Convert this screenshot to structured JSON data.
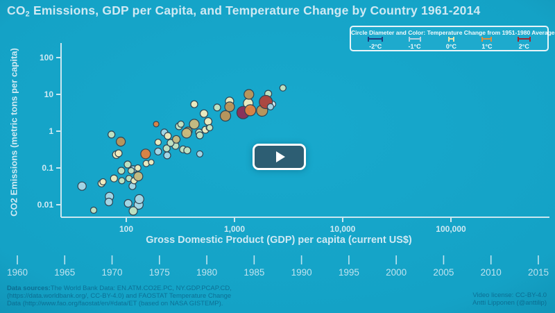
{
  "title": {
    "prefix": "CO",
    "sub": "2",
    "rest": " Emissions, GDP per Capita, and Temperature Change by Country 1961-2014"
  },
  "legend": {
    "title": "Circle Diameter and Color: Temperature Change from 1951-1980 Average",
    "items": [
      {
        "label": "-2°C",
        "color": "#203c7e",
        "width": 22
      },
      {
        "label": "-1°C",
        "color": "#b7d2e4",
        "width": 18
      },
      {
        "label": "0°C",
        "color": "#ece5a9",
        "width": 9
      },
      {
        "label": "1°C",
        "color": "#dd8f3f",
        "width": 15
      },
      {
        "label": "2°C",
        "color": "#9e2430",
        "width": 19
      }
    ]
  },
  "chart_data": {
    "type": "scatter",
    "title": "CO2 Emissions, GDP per Capita, and Temperature Change by Country 1961-2014",
    "xlabel": "Gross Domestic Product (GDP) per capita (current US$)",
    "ylabel": "CO2 Emissions (metric tons per capita)",
    "x_scale": "log",
    "y_scale": "log",
    "xlim": [
      25,
      81000
    ],
    "ylim": [
      0.0046,
      176
    ],
    "x_ticks": [
      100,
      1000,
      10000,
      100000
    ],
    "x_tick_labels": [
      "100",
      "1,000",
      "10,000",
      "100,000"
    ],
    "y_ticks": [
      100,
      10,
      1,
      0.1,
      0.01
    ],
    "y_tick_labels": [
      "100",
      "10",
      "1",
      "0.1",
      "0.01"
    ],
    "grid": false,
    "legend_position": "top-right",
    "point_note": "each point = one country; x=GDP per capita US$, y=CO2 tons per capita, r=pixel radius, k=temperature-color class",
    "palette": {
      "lightblue": "#a9d7e6",
      "iceblue": "#d9edf2",
      "palegreen": "#c4e3c1",
      "cream": "#f2ecbe",
      "khaki": "#cbbb7d",
      "olive": "#b2a75e",
      "tan": "#bf9456",
      "orange": "#e0813f",
      "red": "#b2423a",
      "maroon": "#8e2c55",
      "stroke": "#2f4453"
    },
    "points": [
      {
        "gdp": 39,
        "co2": 0.032,
        "r": 6,
        "k": "lightblue"
      },
      {
        "gdp": 59,
        "co2": 0.038,
        "r": 5,
        "k": "cream"
      },
      {
        "gdp": 61,
        "co2": 0.042,
        "r": 4.5,
        "k": "cream"
      },
      {
        "gdp": 70,
        "co2": 0.0168,
        "r": 6,
        "k": "lightblue"
      },
      {
        "gdp": 69,
        "co2": 0.0119,
        "r": 5.5,
        "k": "lightblue"
      },
      {
        "gdp": 104,
        "co2": 0.0109,
        "r": 5.5,
        "k": "lightblue"
      },
      {
        "gdp": 130,
        "co2": 0.01,
        "r": 6.5,
        "k": "lightblue"
      },
      {
        "gdp": 132,
        "co2": 0.0142,
        "r": 6.5,
        "k": "lightblue"
      },
      {
        "gdp": 116,
        "co2": 0.0068,
        "r": 6,
        "k": "palegreen"
      },
      {
        "gdp": 50,
        "co2": 0.0071,
        "r": 4.5,
        "k": "palegreen"
      },
      {
        "gdp": 77,
        "co2": 0.052,
        "r": 5,
        "k": "cream"
      },
      {
        "gdp": 90,
        "co2": 0.084,
        "r": 5,
        "k": "palegreen"
      },
      {
        "gdp": 91,
        "co2": 0.045,
        "r": 4.5,
        "k": "palegreen"
      },
      {
        "gdp": 106,
        "co2": 0.052,
        "r": 4.5,
        "k": "palegreen"
      },
      {
        "gdp": 114,
        "co2": 0.032,
        "r": 5,
        "k": "lightblue"
      },
      {
        "gdp": 116,
        "co2": 0.092,
        "r": 5,
        "k": "lightblue"
      },
      {
        "gdp": 118,
        "co2": 0.045,
        "r": 4.5,
        "k": "cream"
      },
      {
        "gdp": 129,
        "co2": 0.059,
        "r": 6.5,
        "k": "khaki"
      },
      {
        "gdp": 103,
        "co2": 0.124,
        "r": 5,
        "k": "palegreen"
      },
      {
        "gdp": 111,
        "co2": 0.084,
        "r": 4.5,
        "k": "palegreen"
      },
      {
        "gdp": 128,
        "co2": 0.1,
        "r": 4.5,
        "k": "cream"
      },
      {
        "gdp": 153,
        "co2": 0.132,
        "r": 4.5,
        "k": "cream"
      },
      {
        "gdp": 170,
        "co2": 0.143,
        "r": 4,
        "k": "cream"
      },
      {
        "gdp": 81,
        "co2": 0.23,
        "r": 5.5,
        "k": "cream"
      },
      {
        "gdp": 85,
        "co2": 0.25,
        "r": 5,
        "k": "cream"
      },
      {
        "gdp": 73,
        "co2": 0.81,
        "r": 5,
        "k": "palegreen"
      },
      {
        "gdp": 89,
        "co2": 0.52,
        "r": 6.5,
        "k": "tan"
      },
      {
        "gdp": 151,
        "co2": 0.24,
        "r": 7,
        "k": "orange"
      },
      {
        "gdp": 197,
        "co2": 0.28,
        "r": 5,
        "k": "lightblue"
      },
      {
        "gdp": 197,
        "co2": 0.5,
        "r": 4.5,
        "k": "cream"
      },
      {
        "gdp": 236,
        "co2": 0.34,
        "r": 5,
        "k": "palegreen"
      },
      {
        "gdp": 239,
        "co2": 0.22,
        "r": 5,
        "k": "lightblue"
      },
      {
        "gdp": 285,
        "co2": 0.4,
        "r": 5,
        "k": "palegreen"
      },
      {
        "gdp": 257,
        "co2": 0.48,
        "r": 5,
        "k": "palegreen"
      },
      {
        "gdp": 335,
        "co2": 0.32,
        "r": 5,
        "k": "palegreen"
      },
      {
        "gdp": 366,
        "co2": 0.3,
        "r": 5,
        "k": "palegreen"
      },
      {
        "gdp": 478,
        "co2": 0.24,
        "r": 4.5,
        "k": "lightblue"
      },
      {
        "gdp": 290,
        "co2": 0.6,
        "r": 5.5,
        "k": "khaki"
      },
      {
        "gdp": 225,
        "co2": 0.92,
        "r": 5,
        "k": "lightblue"
      },
      {
        "gdp": 242,
        "co2": 0.74,
        "r": 5,
        "k": "cream"
      },
      {
        "gdp": 307,
        "co2": 1.36,
        "r": 5,
        "k": "palegreen"
      },
      {
        "gdp": 320,
        "co2": 1.55,
        "r": 4.5,
        "k": "palegreen"
      },
      {
        "gdp": 189,
        "co2": 1.55,
        "r": 4,
        "k": "orange"
      },
      {
        "gdp": 372,
        "co2": 1.0,
        "r": 6,
        "k": "olive"
      },
      {
        "gdp": 361,
        "co2": 0.88,
        "r": 7,
        "k": "khaki"
      },
      {
        "gdp": 425,
        "co2": 1.55,
        "r": 7,
        "k": "khaki"
      },
      {
        "gdp": 471,
        "co2": 0.92,
        "r": 5,
        "k": "palegreen"
      },
      {
        "gdp": 478,
        "co2": 0.77,
        "r": 5,
        "k": "palegreen"
      },
      {
        "gdp": 539,
        "co2": 1.09,
        "r": 5,
        "k": "cream"
      },
      {
        "gdp": 580,
        "co2": 1.24,
        "r": 4,
        "k": "palegreen"
      },
      {
        "gdp": 571,
        "co2": 1.84,
        "r": 5.5,
        "k": "cream"
      },
      {
        "gdp": 590,
        "co2": 1.24,
        "r": 4.5,
        "k": "palegreen"
      },
      {
        "gdp": 522,
        "co2": 3.0,
        "r": 5.5,
        "k": "cream"
      },
      {
        "gdp": 425,
        "co2": 5.4,
        "r": 5,
        "k": "cream"
      },
      {
        "gdp": 691,
        "co2": 4.4,
        "r": 5,
        "k": "palegreen"
      },
      {
        "gdp": 826,
        "co2": 2.6,
        "r": 7.5,
        "k": "tan"
      },
      {
        "gdp": 900,
        "co2": 6.5,
        "r": 6,
        "k": "cream"
      },
      {
        "gdp": 902,
        "co2": 4.6,
        "r": 7,
        "k": "tan"
      },
      {
        "gdp": 1340,
        "co2": 5.7,
        "r": 7,
        "k": "cream"
      },
      {
        "gdp": 1360,
        "co2": 10,
        "r": 7,
        "k": "tan"
      },
      {
        "gdp": 2050,
        "co2": 10.4,
        "r": 5,
        "k": "palegreen"
      },
      {
        "gdp": 2800,
        "co2": 15,
        "r": 4.5,
        "k": "palegreen"
      },
      {
        "gdp": 2250,
        "co2": 5.4,
        "r": 4.5,
        "k": "iceblue"
      },
      {
        "gdp": 1800,
        "co2": 3.6,
        "r": 8,
        "k": "tan"
      },
      {
        "gdp": 1200,
        "co2": 3.2,
        "r": 9,
        "k": "maroon"
      },
      {
        "gdp": 1400,
        "co2": 3.7,
        "r": 8,
        "k": "orange"
      },
      {
        "gdp": 1950,
        "co2": 6.2,
        "r": 9.5,
        "k": "red"
      },
      {
        "gdp": 2150,
        "co2": 4.6,
        "r": 4.5,
        "k": "lightblue"
      }
    ]
  },
  "timeline": {
    "years": [
      "1960",
      "1965",
      "1970",
      "1975",
      "1980",
      "1985",
      "1990",
      "1995",
      "2000",
      "2005",
      "2010",
      "2015"
    ]
  },
  "footer": {
    "left_line1_bold": "Data sources:",
    "left_line1_rest": "The World Bank Data: EN.ATM.CO2E.PC, NY.GDP.PCAP.CD,",
    "left_line2": "(https://data.worldbank.org/, CC-BY-4.0) and FAOSTAT Temperature Change",
    "left_line3": "Data (http://www.fao.org/faostat/en/#data/ET (based on NASA GISTEMP).",
    "right_line1": "Video license: CC-BY-4.0",
    "right_line2": "Antti Lipponen (@anttilip)"
  },
  "colors": {
    "background": "#14a2c6",
    "text_light": "#cfe9f3",
    "axis": "#cbe7f0",
    "footer_text": "#0c7095",
    "legend_fill": "#1eaacd",
    "play_button_fill": "#2d5e73"
  }
}
